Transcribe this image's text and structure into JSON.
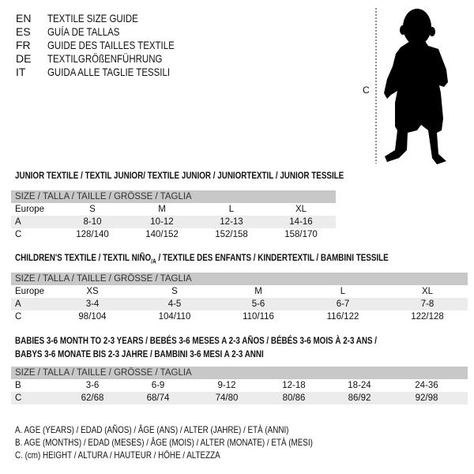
{
  "languages": [
    {
      "code": "EN",
      "title": "TEXTILE SIZE GUIDE"
    },
    {
      "code": "ES",
      "title": "GUÍA DE TALLAS"
    },
    {
      "code": "FR",
      "title": "GUIDE DES TAILLES TEXTILE"
    },
    {
      "code": "DE",
      "title": "TEXTILGRÖßENFÜHRUNG"
    },
    {
      "code": "IT",
      "title": "GUIDA ALLE TAGLIE TESSILI"
    }
  ],
  "figure": {
    "measure_label": "C"
  },
  "junior": {
    "title": "JUNIOR TEXTILE / TEXTIL JUNIOR/ TEXTILE JUNIOR / JUNIORTEXTIL / JUNIOR TESSILE",
    "header": "SIZE / TALLA / TAILLE / GRÖSSE / TAGLIA",
    "rows": [
      {
        "label": "Europe",
        "cells": [
          "S",
          "M",
          "L",
          "XL"
        ]
      },
      {
        "label": "A",
        "cells": [
          "8-10",
          "10-12",
          "12-13",
          "14-16"
        ]
      },
      {
        "label": "C",
        "cells": [
          "128/140",
          "140/152",
          "152/158",
          "158/170"
        ]
      }
    ]
  },
  "children": {
    "title_main": "CHILDREN'S TEXTILE / TEXTIL NIÑO",
    "title_sub": "/A",
    "title_rest": " / TEXTILE DES ENFANTS / KINDERTEXTIL / BAMBINI TESSILE",
    "header": "SIZE / TALLA / TAILLE / GRÖSSE / TAGLIA",
    "rows": [
      {
        "label": "Europe",
        "cells": [
          "XS",
          "S",
          "M",
          "L",
          "XL"
        ]
      },
      {
        "label": "A",
        "cells": [
          "3-4",
          "4-5",
          "5-6",
          "6-7",
          "7-8"
        ]
      },
      {
        "label": "C",
        "cells": [
          "98/104",
          "104/110",
          "110/116",
          "116/122",
          "122/128"
        ]
      }
    ]
  },
  "babies": {
    "title_line1": "BABIES 3-6 MONTH TO 2-3 YEARS / BEBÉS 3-6 MESES A 2-3 AÑOS / BÉBÉS 3-6 MOIS À 2-3 ANS /",
    "title_line2": "BABYS 3-6 MONATE BIS 2-3 JAHRE / BAMBINI 3-6 MESI A 2-3 ANNI",
    "header": "SIZE / TALLA / TAILLE / GRÖSSE / TAGLIA",
    "rows": [
      {
        "label": "B",
        "cells": [
          "3-6",
          "6-9",
          "9-12",
          "12-18",
          "18-24",
          "24-36"
        ]
      },
      {
        "label": "C",
        "cells": [
          "62/68",
          "68/74",
          "74/80",
          "80/86",
          "86/92",
          "92/98"
        ]
      }
    ]
  },
  "legend": [
    "A. AGE (YEARS) / EDAD (AÑOS) / ÂGE (ANS) / ALTER (JAHRE) / ETÀ (ANNI)",
    "B. AGE (MONTHS) / EDAD (MESES) / ÂGE (MOIS) / ALTER (MONATE) / ETÀ (MESI)",
    "C. (cm) HEIGHT / ALTURA / HAUTEUR / HÖHE / ALTEZZA"
  ]
}
